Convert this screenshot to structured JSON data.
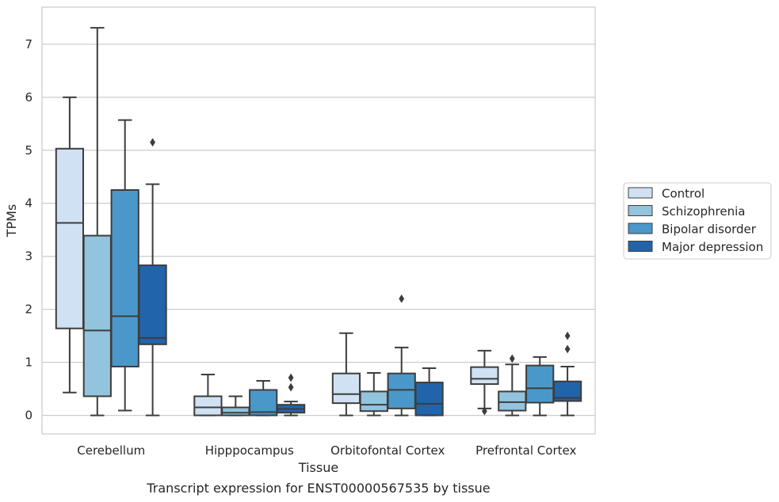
{
  "chart_data": {
    "type": "box",
    "caption": "Transcript expression for ENST00000567535 by tissue",
    "xlabel": "Tissue",
    "ylabel": "TPMs",
    "ylim": [
      -0.35,
      7.7
    ],
    "yticks": [
      0,
      1,
      2,
      3,
      4,
      5,
      6,
      7
    ],
    "grid": "horizontal",
    "legend_position": "right",
    "categories": [
      "Cerebellum",
      "Hipppocampus",
      "Orbitofontal Cortex",
      "Prefrontal Cortex"
    ],
    "series": [
      {
        "name": "Control",
        "color": "#cfe1f2",
        "boxes": [
          {
            "whislo": 0.43,
            "q1": 1.64,
            "med": 3.63,
            "q3": 5.03,
            "whishi": 6.0,
            "fliers": []
          },
          {
            "whislo": 0.0,
            "q1": 0.0,
            "med": 0.15,
            "q3": 0.36,
            "whishi": 0.77,
            "fliers": []
          },
          {
            "whislo": 0.0,
            "q1": 0.23,
            "med": 0.4,
            "q3": 0.79,
            "whishi": 1.55,
            "fliers": []
          },
          {
            "whislo": 0.13,
            "q1": 0.59,
            "med": 0.69,
            "q3": 0.91,
            "whishi": 1.22,
            "fliers": [
              0.08
            ]
          }
        ]
      },
      {
        "name": "Schizophrenia",
        "color": "#93c4de",
        "boxes": [
          {
            "whislo": 0.0,
            "q1": 0.36,
            "med": 1.6,
            "q3": 3.39,
            "whishi": 7.31,
            "fliers": []
          },
          {
            "whislo": 0.0,
            "q1": 0.0,
            "med": 0.05,
            "q3": 0.15,
            "whishi": 0.36,
            "fliers": []
          },
          {
            "whislo": 0.0,
            "q1": 0.08,
            "med": 0.2,
            "q3": 0.45,
            "whishi": 0.8,
            "fliers": []
          },
          {
            "whislo": 0.0,
            "q1": 0.09,
            "med": 0.25,
            "q3": 0.45,
            "whishi": 0.96,
            "fliers": [
              1.07
            ]
          }
        ]
      },
      {
        "name": "Bipolar disorder",
        "color": "#4a98c9",
        "boxes": [
          {
            "whislo": 0.09,
            "q1": 0.92,
            "med": 1.87,
            "q3": 4.25,
            "whishi": 5.57,
            "fliers": []
          },
          {
            "whislo": 0.0,
            "q1": 0.0,
            "med": 0.06,
            "q3": 0.48,
            "whishi": 0.65,
            "fliers": []
          },
          {
            "whislo": 0.0,
            "q1": 0.13,
            "med": 0.48,
            "q3": 0.79,
            "whishi": 1.28,
            "fliers": [
              2.2
            ]
          },
          {
            "whislo": 0.0,
            "q1": 0.24,
            "med": 0.51,
            "q3": 0.94,
            "whishi": 1.1,
            "fliers": []
          }
        ]
      },
      {
        "name": "Major depression",
        "color": "#2164ab",
        "boxes": [
          {
            "whislo": 0.0,
            "q1": 1.34,
            "med": 1.46,
            "q3": 2.83,
            "whishi": 4.36,
            "fliers": [
              5.15
            ]
          },
          {
            "whislo": 0.0,
            "q1": 0.05,
            "med": 0.12,
            "q3": 0.2,
            "whishi": 0.26,
            "fliers": [
              0.53,
              0.71
            ]
          },
          {
            "whislo": 0.0,
            "q1": 0.0,
            "med": 0.22,
            "q3": 0.62,
            "whishi": 0.89,
            "fliers": []
          },
          {
            "whislo": 0.0,
            "q1": 0.27,
            "med": 0.33,
            "q3": 0.64,
            "whishi": 0.92,
            "fliers": [
              1.25,
              1.5
            ]
          }
        ]
      }
    ]
  }
}
